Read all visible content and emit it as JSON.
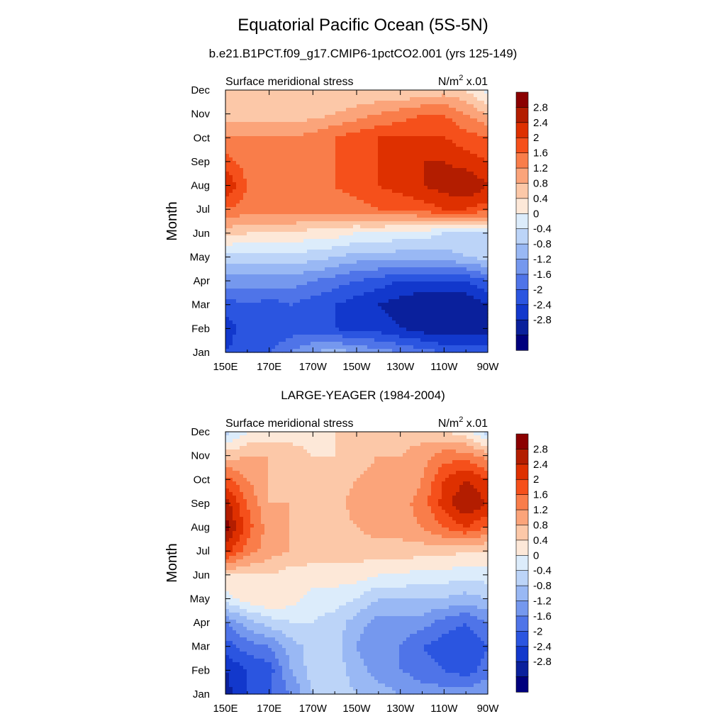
{
  "title": "Equatorial Pacific Ocean (5S-5N)",
  "subtitle": "b.e21.B1PCT.f09_g17.CMIP6-1pctCO2.001 (yrs 125-149)",
  "panel2_title": "LARGE-YEAGER (1984-2004)",
  "colorbar": {
    "labels": [
      "2.8",
      "2.4",
      "2",
      "1.6",
      "1.2",
      "0.8",
      "0.4",
      "0",
      "-0.4",
      "-0.8",
      "-1.2",
      "-1.6",
      "-2",
      "-2.4",
      "-2.8"
    ],
    "colors": [
      "#8b0000",
      "#b31d00",
      "#de3000",
      "#f5501b",
      "#f97d4a",
      "#fba47a",
      "#fcc8a8",
      "#fde8d8",
      "#dcecfb",
      "#bcd4f8",
      "#99b8f4",
      "#7598ee",
      "#4f74e8",
      "#2b55e0",
      "#1238cc",
      "#0a209c",
      "#00007d"
    ]
  },
  "chart_data": [
    {
      "type": "heatmap",
      "title": "",
      "subtitle_left": "Surface meridional stress",
      "units_main": "N/m",
      "units_exp": "2",
      "units_scale": " x.01",
      "ylabel": "Month",
      "x_ticks": [
        "150E",
        "170E",
        "170W",
        "150W",
        "130W",
        "110W",
        "90W"
      ],
      "y_ticks": [
        "Jan",
        "Feb",
        "Mar",
        "Apr",
        "May",
        "Jun",
        "Jul",
        "Aug",
        "Sep",
        "Oct",
        "Nov",
        "Dec"
      ],
      "x": [
        "150E",
        "160E",
        "170E",
        "180",
        "170W",
        "160W",
        "150W",
        "140W",
        "130W",
        "120W",
        "110W",
        "100W",
        "90W"
      ],
      "values": [
        [
          -2.4,
          -2.2,
          -2.0,
          -1.6,
          -1.2,
          -1.0,
          -1.2,
          -1.4,
          -1.6,
          -1.8,
          -2.0,
          -2.2,
          -2.2
        ],
        [
          -2.6,
          -2.2,
          -2.4,
          -2.2,
          -2.2,
          -2.4,
          -2.6,
          -2.6,
          -2.8,
          -3.0,
          -3.2,
          -3.0,
          -3.0
        ],
        [
          -2.2,
          -2.0,
          -2.2,
          -2.0,
          -2.2,
          -2.4,
          -2.6,
          -2.8,
          -3.0,
          -3.2,
          -3.2,
          -3.2,
          -2.8
        ],
        [
          -1.4,
          -1.4,
          -1.4,
          -1.4,
          -1.6,
          -1.8,
          -2.0,
          -2.2,
          -2.4,
          -2.4,
          -2.4,
          -2.4,
          -2.0
        ],
        [
          -0.6,
          -0.6,
          -0.6,
          -0.6,
          -0.6,
          -0.8,
          -1.0,
          -1.0,
          -1.0,
          -1.0,
          -1.0,
          -0.8,
          -0.6
        ],
        [
          0.6,
          0.4,
          0.4,
          0.4,
          0.2,
          0.2,
          0.0,
          0.0,
          -0.2,
          -0.2,
          -0.4,
          -0.4,
          -0.4
        ],
        [
          1.6,
          1.4,
          1.4,
          1.4,
          1.4,
          1.4,
          1.4,
          1.6,
          1.6,
          1.8,
          2.0,
          2.0,
          1.8
        ],
        [
          2.4,
          1.6,
          1.6,
          1.6,
          1.6,
          1.6,
          1.8,
          2.0,
          2.2,
          2.4,
          2.6,
          2.8,
          2.4
        ],
        [
          1.8,
          1.4,
          1.4,
          1.4,
          1.4,
          1.6,
          1.8,
          2.0,
          2.2,
          2.4,
          2.4,
          2.2,
          2.0
        ],
        [
          1.2,
          1.2,
          1.2,
          1.2,
          1.4,
          1.6,
          1.8,
          2.0,
          2.0,
          2.0,
          2.0,
          1.8,
          1.6
        ],
        [
          0.6,
          0.6,
          0.6,
          0.6,
          0.6,
          0.8,
          1.0,
          1.2,
          1.4,
          1.6,
          1.6,
          1.2,
          0.8
        ],
        [
          0.4,
          0.4,
          0.4,
          0.4,
          0.4,
          0.4,
          0.4,
          0.4,
          0.4,
          0.4,
          0.6,
          0.4,
          -0.2
        ]
      ]
    },
    {
      "type": "heatmap",
      "title": "",
      "subtitle_left": "Surface meridional stress",
      "units_main": "N/m",
      "units_exp": "2",
      "units_scale": " x.01",
      "ylabel": "Month",
      "x_ticks": [
        "150E",
        "170E",
        "170W",
        "150W",
        "130W",
        "110W",
        "90W"
      ],
      "y_ticks": [
        "Jan",
        "Feb",
        "Mar",
        "Apr",
        "May",
        "Jun",
        "Jul",
        "Aug",
        "Sep",
        "Oct",
        "Nov",
        "Dec"
      ],
      "x": [
        "150E",
        "160E",
        "170E",
        "180",
        "170W",
        "160W",
        "150W",
        "140W",
        "130W",
        "120W",
        "110W",
        "100W",
        "90W"
      ],
      "values": [
        [
          -3.0,
          -2.4,
          -2.0,
          -1.6,
          -0.8,
          -0.6,
          -0.8,
          -1.0,
          -1.2,
          -1.4,
          -1.4,
          -1.4,
          -1.2
        ],
        [
          -2.8,
          -2.4,
          -2.2,
          -1.2,
          -0.6,
          -0.6,
          -1.0,
          -1.4,
          -1.6,
          -1.8,
          -2.0,
          -2.2,
          -1.8
        ],
        [
          -2.2,
          -1.8,
          -1.6,
          -1.0,
          -0.6,
          -0.6,
          -1.2,
          -1.6,
          -1.6,
          -2.0,
          -2.2,
          -2.4,
          -2.0
        ],
        [
          -1.6,
          -1.0,
          -0.6,
          -0.4,
          -0.4,
          -0.6,
          -1.0,
          -1.4,
          -1.4,
          -1.4,
          -1.8,
          -2.0,
          -1.6
        ],
        [
          -0.2,
          0.2,
          0.4,
          0.2,
          -0.2,
          -0.2,
          -0.4,
          -0.8,
          -0.8,
          -0.8,
          -0.8,
          -1.0,
          -0.8
        ],
        [
          0.4,
          0.4,
          0.4,
          0.2,
          0.2,
          0.2,
          0.2,
          0.0,
          0.0,
          -0.2,
          -0.2,
          -0.2,
          -0.2
        ],
        [
          2.2,
          1.4,
          1.0,
          0.8,
          0.6,
          0.6,
          0.6,
          0.6,
          0.6,
          0.6,
          0.6,
          0.4,
          0.4
        ],
        [
          3.0,
          1.8,
          1.0,
          0.8,
          0.6,
          0.6,
          0.8,
          1.0,
          1.0,
          1.2,
          1.6,
          2.0,
          1.6
        ],
        [
          2.6,
          1.6,
          0.8,
          0.8,
          0.8,
          0.6,
          1.0,
          1.2,
          1.0,
          1.4,
          2.2,
          2.8,
          2.4
        ],
        [
          1.8,
          1.2,
          0.8,
          0.6,
          0.4,
          0.6,
          0.8,
          1.0,
          0.8,
          1.2,
          2.0,
          2.4,
          2.0
        ],
        [
          0.6,
          0.8,
          0.8,
          0.6,
          0.4,
          0.4,
          0.6,
          0.8,
          0.8,
          1.0,
          1.4,
          1.4,
          1.0
        ],
        [
          -0.6,
          0.0,
          0.0,
          0.2,
          0.2,
          0.4,
          0.6,
          0.6,
          0.6,
          0.6,
          0.4,
          0.2,
          -0.6
        ]
      ]
    }
  ]
}
